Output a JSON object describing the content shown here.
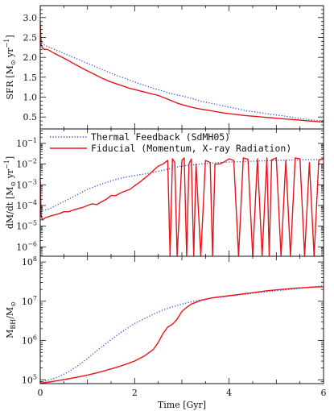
{
  "chart_data": [
    {
      "type": "line",
      "panel": "top",
      "ylabel": "SFR [M⊙ yr⁻¹]",
      "ylabel_main": "SFR  [M",
      "ylabel_unit": " yr",
      "ylabel_exp": "−1",
      "ylabel_close": "]",
      "xlim": [
        0,
        6
      ],
      "ylim": [
        0.2,
        3.3
      ],
      "yscale": "linear",
      "yticks": [
        0.5,
        1.0,
        1.5,
        2.0,
        2.5,
        3.0
      ],
      "ytick_labels": [
        "0.5",
        "1.0",
        "1.5",
        "2.0",
        "2.5",
        "3.0"
      ],
      "series": [
        {
          "name": "Thermal Feedback (SdMH05)",
          "style": "dotted",
          "color": "#1f4fd8",
          "x": [
            0,
            0.02,
            0.05,
            0.1,
            0.2,
            0.4,
            0.6,
            0.8,
            1.0,
            1.2,
            1.4,
            1.6,
            1.8,
            2.0,
            2.2,
            2.4,
            2.6,
            2.8,
            3.0,
            3.2,
            3.4,
            3.6,
            3.8,
            4.0,
            4.2,
            4.4,
            4.6,
            4.8,
            5.0,
            5.2,
            5.4,
            5.6,
            5.8,
            6.0
          ],
          "y": [
            2.5,
            2.45,
            2.35,
            2.3,
            2.25,
            2.15,
            2.05,
            1.95,
            1.85,
            1.75,
            1.65,
            1.55,
            1.47,
            1.38,
            1.3,
            1.22,
            1.15,
            1.08,
            1.03,
            0.97,
            0.9,
            0.85,
            0.8,
            0.75,
            0.7,
            0.65,
            0.62,
            0.58,
            0.55,
            0.52,
            0.48,
            0.45,
            0.42,
            0.4
          ]
        },
        {
          "name": "Fiducial (Momentum, X-ray Radiation)",
          "style": "solid",
          "color": "#e8141a",
          "x": [
            0,
            0.01,
            0.02,
            0.04,
            0.08,
            0.15,
            0.3,
            0.5,
            0.7,
            0.9,
            1.1,
            1.3,
            1.5,
            1.7,
            1.9,
            2.1,
            2.3,
            2.5,
            2.7,
            2.9,
            3.1,
            3.3,
            3.5,
            3.7,
            3.9,
            4.1,
            4.3,
            4.5,
            4.7,
            4.9,
            5.1,
            5.3,
            5.5,
            5.7,
            5.9,
            6.0
          ],
          "y": [
            2.9,
            2.6,
            2.3,
            2.25,
            2.2,
            2.2,
            2.1,
            1.98,
            1.85,
            1.72,
            1.6,
            1.48,
            1.38,
            1.3,
            1.22,
            1.16,
            1.1,
            1.04,
            0.95,
            0.85,
            0.78,
            0.72,
            0.68,
            0.64,
            0.6,
            0.57,
            0.54,
            0.52,
            0.5,
            0.48,
            0.46,
            0.44,
            0.42,
            0.4,
            0.38,
            0.37
          ]
        }
      ]
    },
    {
      "type": "line",
      "panel": "middle",
      "ylabel": "dM/dt [M⊙ yr⁻¹]",
      "ylabel_main": "dM/dt  [M",
      "ylabel_unit": " yr",
      "ylabel_exp": "−1",
      "ylabel_close": "]",
      "xlim": [
        0,
        6
      ],
      "ylim": [
        3.5e-07,
        0.5
      ],
      "yscale": "log",
      "ytick_exponents": [
        -6,
        -5,
        -4,
        -3,
        -2,
        -1
      ],
      "legend": {
        "placement": "top"
      },
      "series": [
        {
          "name": "Thermal Feedback (SdMH05)",
          "style": "dotted",
          "color": "#1f4fd8",
          "x": [
            0,
            0.02,
            0.05,
            0.1,
            0.2,
            0.4,
            0.6,
            0.8,
            1.0,
            1.2,
            1.4,
            1.6,
            1.8,
            2.0,
            2.2,
            2.4,
            2.6,
            2.8,
            3.0,
            3.2,
            3.4,
            3.6,
            3.8,
            4.0,
            4.2,
            4.4,
            4.6,
            4.8,
            5.0,
            5.2,
            5.4,
            5.6,
            5.8,
            6.0
          ],
          "y": [
            0.0002,
            0.0001,
            6e-05,
            6e-05,
            7e-05,
            0.00012,
            0.0002,
            0.00035,
            0.0006,
            0.0009,
            0.0013,
            0.0018,
            0.0023,
            0.0028,
            0.0033,
            0.004,
            0.005,
            0.0065,
            0.008,
            0.009,
            0.01,
            0.011,
            0.012,
            0.0125,
            0.013,
            0.0135,
            0.014,
            0.0145,
            0.015,
            0.0155,
            0.016,
            0.0162,
            0.0164,
            0.0165
          ]
        },
        {
          "name": "Fiducial (Momentum, X-ray Radiation)",
          "style": "solid",
          "color": "#e8141a",
          "x": [
            0,
            0.02,
            0.05,
            0.1,
            0.2,
            0.3,
            0.4,
            0.5,
            0.6,
            0.7,
            0.8,
            0.9,
            1.0,
            1.1,
            1.2,
            1.3,
            1.4,
            1.5,
            1.6,
            1.7,
            1.8,
            1.9,
            2.0,
            2.1,
            2.2,
            2.3,
            2.4,
            2.5,
            2.6,
            2.7,
            2.75,
            2.8,
            2.85,
            2.9,
            3.0,
            3.05,
            3.1,
            3.15,
            3.2,
            3.25,
            3.3,
            3.4,
            3.5,
            3.6,
            3.65,
            3.7,
            3.8,
            3.9,
            4.0,
            4.1,
            4.2,
            4.3,
            4.4,
            4.5,
            4.6,
            4.7,
            4.8,
            4.85,
            4.9,
            5.0,
            5.1,
            5.2,
            5.3,
            5.4,
            5.5,
            5.6,
            5.7,
            5.8,
            5.9,
            6.0
          ],
          "y": [
            0.002,
            3e-05,
            2e-05,
            2.5e-05,
            3e-05,
            3.5e-05,
            4e-05,
            5e-05,
            5e-05,
            6e-05,
            7e-05,
            8e-05,
            0.0001,
            0.00012,
            0.00011,
            0.00015,
            0.0002,
            0.0003,
            0.0003,
            0.0004,
            0.0005,
            0.0006,
            0.0009,
            0.0013,
            0.002,
            0.003,
            0.005,
            0.008,
            0.01,
            0.015,
            3e-07,
            0.018,
            0.012,
            3e-07,
            0.015,
            0.02,
            3e-07,
            0.01,
            0.018,
            3e-07,
            0.01,
            3e-07,
            0.015,
            0.012,
            3e-07,
            0.01,
            0.01,
            0.013,
            0.018,
            0.015,
            3e-07,
            0.02,
            0.017,
            3e-07,
            0.018,
            3e-07,
            0.02,
            3e-07,
            0.016,
            0.02,
            3e-07,
            0.015,
            3e-07,
            0.02,
            0.018,
            3e-07,
            0.012,
            3e-07,
            0.016,
            0.018
          ]
        }
      ]
    },
    {
      "type": "line",
      "panel": "bottom",
      "ylabel": "M_BH/M⊙",
      "ylabel_main": "M",
      "ylabel_sub": "BH",
      "ylabel_slash": "/M",
      "xlabel": "Time   [Gyr]",
      "xlim": [
        0,
        6
      ],
      "ylim": [
        80000,
        140000000
      ],
      "yscale": "log",
      "ytick_exponents": [
        5,
        6,
        7,
        8
      ],
      "xticks": [
        0,
        2,
        4,
        6
      ],
      "xtick_labels": [
        "0",
        "2",
        "4",
        "6"
      ],
      "series": [
        {
          "name": "Thermal Feedback (SdMH05)",
          "style": "dotted",
          "color": "#1f4fd8",
          "x": [
            0,
            0.2,
            0.4,
            0.6,
            0.8,
            1.0,
            1.2,
            1.4,
            1.6,
            1.8,
            2.0,
            2.2,
            2.4,
            2.6,
            2.8,
            3.0,
            3.2,
            3.4,
            3.6,
            3.8,
            4.0,
            4.2,
            4.4,
            4.6,
            4.8,
            5.0,
            5.2,
            5.4,
            5.6,
            5.8,
            6.0
          ],
          "y": [
            85000,
            100000,
            120000,
            160000,
            230000,
            350000,
            550000,
            850000,
            1300000,
            1900000,
            2700000,
            3600000,
            4700000,
            6000000,
            7200000,
            8500000,
            9700000,
            10800000,
            11800000,
            12700000,
            13600000,
            14500000,
            15500000,
            16500000,
            17500000,
            18500000,
            19500000,
            20700000,
            22000000,
            23500000,
            25000000
          ]
        },
        {
          "name": "Fiducial (Momentum, X-ray Radiation)",
          "style": "solid",
          "color": "#e8141a",
          "x": [
            0,
            0.2,
            0.4,
            0.6,
            0.8,
            1.0,
            1.2,
            1.4,
            1.6,
            1.8,
            2.0,
            2.2,
            2.4,
            2.5,
            2.6,
            2.7,
            2.8,
            2.9,
            3.0,
            3.1,
            3.2,
            3.4,
            3.6,
            3.8,
            4.0,
            4.2,
            4.4,
            4.6,
            4.8,
            5.0,
            5.2,
            5.4,
            5.6,
            5.8,
            6.0
          ],
          "y": [
            82000,
            88000,
            96000,
            106000,
            118000,
            132000,
            150000,
            175000,
            205000,
            245000,
            300000,
            400000,
            600000,
            900000,
            1500000,
            2200000,
            2600000,
            3500000,
            5500000,
            7000000,
            8500000,
            10500000,
            12000000,
            13000000,
            13800000,
            14800000,
            16000000,
            17200000,
            18500000,
            19500000,
            20500000,
            21500000,
            22300000,
            23000000,
            23500000
          ]
        }
      ]
    }
  ],
  "legend": {
    "entries": [
      {
        "label": "Thermal Feedback (SdMH05)",
        "style": "dotted",
        "color": "#1f4fd8"
      },
      {
        "label": "Fiducial (Momentum, X-ray Radiation)",
        "style": "solid",
        "color": "#e8141a"
      }
    ]
  },
  "colors": {
    "thermal": "#1f4fd8",
    "fiducial": "#e8141a",
    "axes": "#111111"
  }
}
